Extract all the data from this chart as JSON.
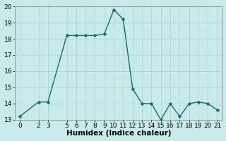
{
  "xlabel": "Humidex (Indice chaleur)",
  "background_color": "#c8eaea",
  "grid_color": "#b0d8d8",
  "line_color": "#1a6b6b",
  "xlim": [
    -0.5,
    21.5
  ],
  "ylim": [
    13,
    20
  ],
  "yticks": [
    13,
    14,
    15,
    16,
    17,
    18,
    19,
    20
  ],
  "xticks": [
    0,
    2,
    3,
    5,
    6,
    7,
    8,
    9,
    10,
    11,
    12,
    13,
    14,
    15,
    16,
    17,
    18,
    19,
    20,
    21
  ],
  "x": [
    0,
    2,
    3,
    5,
    6,
    7,
    8,
    9,
    10,
    11,
    12,
    13,
    14,
    15,
    16,
    17,
    18,
    19,
    20,
    21
  ],
  "y": [
    13.2,
    14.1,
    14.1,
    18.2,
    18.2,
    18.2,
    18.2,
    18.3,
    19.8,
    19.2,
    14.9,
    14.0,
    14.0,
    13.0,
    14.0,
    13.2,
    14.0,
    14.1,
    14.0,
    13.6
  ],
  "marker_size": 2.5,
  "line_width": 1.0,
  "xlabel_fontsize": 7.5,
  "tick_fontsize": 6.5
}
